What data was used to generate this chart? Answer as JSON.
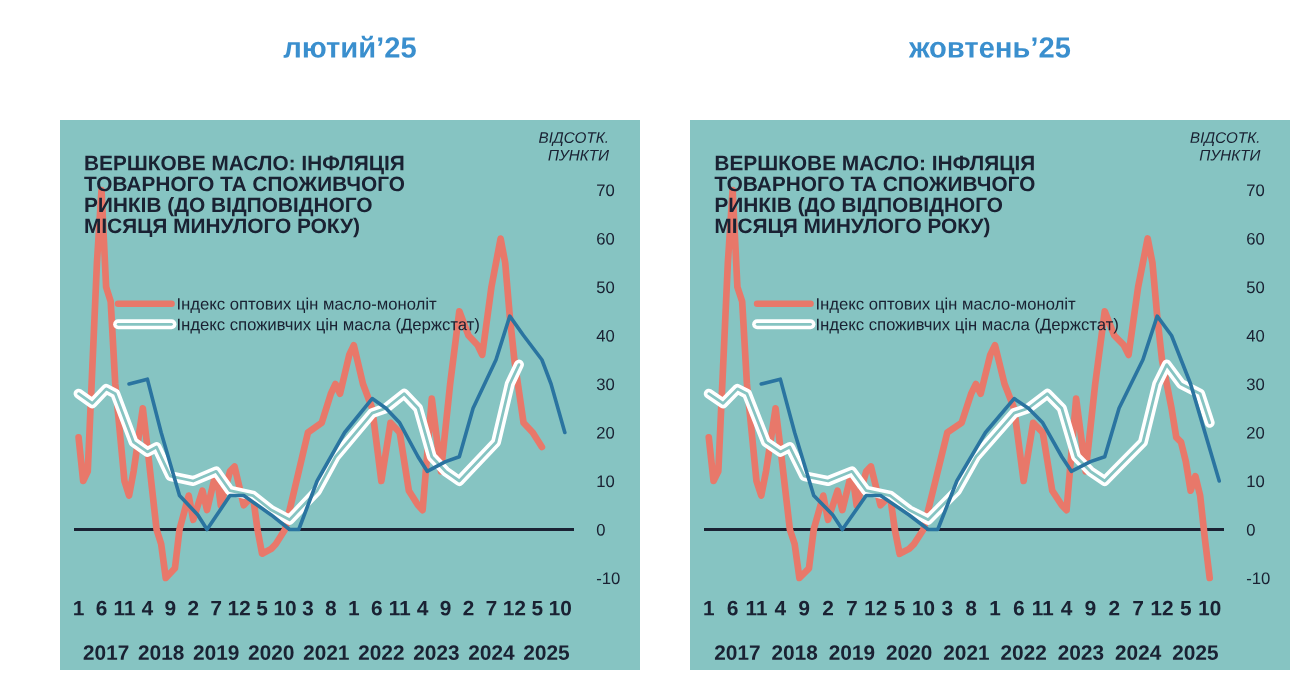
{
  "chart_data": [
    {
      "type": "line",
      "title": "лютий’25",
      "subtitle": "ВЕРШКОВЕ МАСЛО: ІНФЛЯЦІЯ\nТОВАРНОГО ТА СПОЖИВЧОГО\nРИНКІВ (ДО ВІДПОВІДНОГО\nМІСЯЦЯ МИНУЛОГО РОКУ)",
      "ylabel": "ВІДСОТК.\nПУНКТИ",
      "xlim": [
        "2016-12",
        "2026-01"
      ],
      "ylim": [
        -10,
        70
      ],
      "yticks": [
        -10,
        0,
        10,
        20,
        30,
        40,
        50,
        60,
        70
      ],
      "xticks": [
        {
          "value": "2017-01",
          "label": "1"
        },
        {
          "value": "2017-06",
          "label": "6"
        },
        {
          "value": "2017-11",
          "label": "11"
        },
        {
          "value": "2018-04",
          "label": "4"
        },
        {
          "value": "2018-09",
          "label": "9"
        },
        {
          "value": "2019-02",
          "label": "2"
        },
        {
          "value": "2019-07",
          "label": "7"
        },
        {
          "value": "2019-12",
          "label": "12"
        },
        {
          "value": "2020-05",
          "label": "5"
        },
        {
          "value": "2020-10",
          "label": "10"
        },
        {
          "value": "2021-03",
          "label": "3"
        },
        {
          "value": "2021-08",
          "label": "8"
        },
        {
          "value": "2022-01",
          "label": "1"
        },
        {
          "value": "2022-06",
          "label": "6"
        },
        {
          "value": "2022-11",
          "label": "11"
        },
        {
          "value": "2023-04",
          "label": "4"
        },
        {
          "value": "2023-09",
          "label": "9"
        },
        {
          "value": "2024-02",
          "label": "2"
        },
        {
          "value": "2024-07",
          "label": "7"
        },
        {
          "value": "2024-12",
          "label": "12"
        },
        {
          "value": "2025-05",
          "label": "5"
        },
        {
          "value": "2025-10",
          "label": "10"
        }
      ],
      "x2lim": [
        "2016-12",
        "2026-01"
      ],
      "x2ticks": [
        {
          "value": "2017-07",
          "label": "2017"
        },
        {
          "value": "2018-07",
          "label": "2018"
        },
        {
          "value": "2019-07",
          "label": "2019"
        },
        {
          "value": "2020-07",
          "label": "2020"
        },
        {
          "value": "2021-07",
          "label": "2021"
        },
        {
          "value": "2022-07",
          "label": "2022"
        },
        {
          "value": "2023-07",
          "label": "2023"
        },
        {
          "value": "2024-07",
          "label": "2024"
        },
        {
          "value": "2025-07",
          "label": "2025"
        }
      ],
      "grid": false,
      "legend": "top",
      "marker": "none",
      "line_style": "solid",
      "ref_lines": [
        {
          "axis": "y",
          "value": 0,
          "color": "#1a2233"
        }
      ],
      "series": [
        {
          "name": "Індекс оптових цін масло-моноліт",
          "color": "#e8786a",
          "x": [
            "2017-01",
            "2017-02",
            "2017-03",
            "2017-05",
            "2017-06",
            "2017-07",
            "2017-08",
            "2017-09",
            "2017-10",
            "2017-11",
            "2017-12",
            "2018-01",
            "2018-03",
            "2018-04",
            "2018-06",
            "2018-07",
            "2018-08",
            "2018-10",
            "2018-11",
            "2019-01",
            "2019-02",
            "2019-04",
            "2019-05",
            "2019-07",
            "2019-08",
            "2019-10",
            "2019-11",
            "2020-01",
            "2020-03",
            "2020-04",
            "2020-05",
            "2020-07",
            "2020-08",
            "2020-10",
            "2020-12",
            "2021-03",
            "2021-06",
            "2021-08",
            "2021-09",
            "2021-10",
            "2021-12",
            "2022-01",
            "2022-03",
            "2022-05",
            "2022-07",
            "2022-09",
            "2022-11",
            "2023-01",
            "2023-03",
            "2023-04",
            "2023-06",
            "2023-08",
            "2023-10",
            "2023-12",
            "2024-02",
            "2024-04",
            "2024-05",
            "2024-07",
            "2024-09",
            "2024-10",
            "2024-11",
            "2024-12",
            "2025-02",
            "2025-04",
            "2025-06"
          ],
          "values": [
            19,
            10,
            12,
            55,
            70,
            50,
            47,
            30,
            20,
            10,
            7,
            12,
            25,
            17,
            0,
            -3,
            -10,
            -8,
            0,
            7,
            2,
            8,
            4,
            12,
            5,
            12,
            13,
            5,
            7,
            0,
            -5,
            -4,
            -3,
            0,
            8,
            20,
            22,
            28,
            30,
            28,
            36,
            38,
            30,
            25,
            10,
            22,
            20,
            8,
            5,
            4,
            27,
            12,
            30,
            45,
            40,
            38,
            36,
            50,
            60,
            55,
            44,
            35,
            22,
            20,
            17
          ]
        },
        {
          "name": "Індекс споживчих цін масла (Держстат)",
          "color": "#ffffff",
          "x": [
            "2017-01",
            "2017-04",
            "2017-07",
            "2017-09",
            "2018-01",
            "2018-04",
            "2018-06",
            "2018-09",
            "2019-02",
            "2019-07",
            "2019-10",
            "2020-03",
            "2020-07",
            "2020-11",
            "2021-02",
            "2021-05",
            "2021-09",
            "2022-05",
            "2022-08",
            "2022-12",
            "2023-03",
            "2023-06",
            "2023-09",
            "2023-12",
            "2024-02",
            "2024-05",
            "2024-08",
            "2024-11",
            "2025-01"
          ],
          "values": [
            28,
            26,
            29,
            28,
            18,
            16,
            17,
            11,
            10,
            12,
            8,
            7,
            4,
            2,
            5,
            8,
            15,
            24,
            25,
            28,
            25,
            15,
            12,
            10,
            12,
            15,
            18,
            30,
            34
          ]
        },
        {
          "color": "#2a74a0",
          "x": [
            "2017-12",
            "2018-04",
            "2018-07",
            "2018-11",
            "2019-03",
            "2019-05",
            "2019-10",
            "2020-01",
            "2020-07",
            "2020-11",
            "2021-01",
            "2021-05",
            "2021-11",
            "2022-05",
            "2022-08",
            "2022-11",
            "2023-03",
            "2023-05",
            "2023-09",
            "2023-12",
            "2024-03",
            "2024-08",
            "2024-11",
            "2025-02",
            "2025-06",
            "2025-08",
            "2025-11"
          ],
          "values": [
            30,
            31,
            20,
            7,
            3,
            0,
            7,
            7,
            3,
            0,
            0,
            10,
            20,
            27,
            25,
            22,
            15,
            12,
            14,
            15,
            25,
            35,
            44,
            40,
            35,
            30,
            20
          ]
        }
      ]
    },
    {
      "type": "line",
      "title": "жовтень’25",
      "subtitle": "ВЕРШКОВЕ МАСЛО: ІНФЛЯЦІЯ\nТОВАРНОГО ТА СПОЖИВЧОГО\nРИНКІВ (ДО ВІДПОВІДНОГО\nМІСЯЦЯ МИНУЛОГО РОКУ)",
      "ylabel": "ВІДСОТК.\nПУНКТИ",
      "xlim": [
        "2016-12",
        "2026-01"
      ],
      "ylim": [
        -10,
        70
      ],
      "yticks": [
        -10,
        0,
        10,
        20,
        30,
        40,
        50,
        60,
        70
      ],
      "xticks": [
        {
          "value": "2017-01",
          "label": "1"
        },
        {
          "value": "2017-06",
          "label": "6"
        },
        {
          "value": "2017-11",
          "label": "11"
        },
        {
          "value": "2018-04",
          "label": "4"
        },
        {
          "value": "2018-09",
          "label": "9"
        },
        {
          "value": "2019-02",
          "label": "2"
        },
        {
          "value": "2019-07",
          "label": "7"
        },
        {
          "value": "2019-12",
          "label": "12"
        },
        {
          "value": "2020-05",
          "label": "5"
        },
        {
          "value": "2020-10",
          "label": "10"
        },
        {
          "value": "2021-03",
          "label": "3"
        },
        {
          "value": "2021-08",
          "label": "8"
        },
        {
          "value": "2022-01",
          "label": "1"
        },
        {
          "value": "2022-06",
          "label": "6"
        },
        {
          "value": "2022-11",
          "label": "11"
        },
        {
          "value": "2023-04",
          "label": "4"
        },
        {
          "value": "2023-09",
          "label": "9"
        },
        {
          "value": "2024-02",
          "label": "2"
        },
        {
          "value": "2024-07",
          "label": "7"
        },
        {
          "value": "2024-12",
          "label": "12"
        },
        {
          "value": "2025-05",
          "label": "5"
        },
        {
          "value": "2025-10",
          "label": "10"
        }
      ],
      "x2lim": [
        "2016-12",
        "2026-01"
      ],
      "x2ticks": [
        {
          "value": "2017-07",
          "label": "2017"
        },
        {
          "value": "2018-07",
          "label": "2018"
        },
        {
          "value": "2019-07",
          "label": "2019"
        },
        {
          "value": "2020-07",
          "label": "2020"
        },
        {
          "value": "2021-07",
          "label": "2021"
        },
        {
          "value": "2022-07",
          "label": "2022"
        },
        {
          "value": "2023-07",
          "label": "2023"
        },
        {
          "value": "2024-07",
          "label": "2024"
        },
        {
          "value": "2025-07",
          "label": "2025"
        }
      ],
      "grid": false,
      "legend": "top",
      "marker": "none",
      "line_style": "solid",
      "ref_lines": [
        {
          "axis": "y",
          "value": 0,
          "color": "#1a2233"
        }
      ],
      "series": [
        {
          "name": "Індекс оптових цін масло-моноліт",
          "color": "#e8786a",
          "x": [
            "2017-01",
            "2017-02",
            "2017-03",
            "2017-05",
            "2017-06",
            "2017-07",
            "2017-08",
            "2017-09",
            "2017-10",
            "2017-11",
            "2017-12",
            "2018-01",
            "2018-03",
            "2018-04",
            "2018-06",
            "2018-07",
            "2018-08",
            "2018-10",
            "2018-11",
            "2019-01",
            "2019-02",
            "2019-04",
            "2019-05",
            "2019-07",
            "2019-08",
            "2019-10",
            "2019-11",
            "2020-01",
            "2020-03",
            "2020-04",
            "2020-05",
            "2020-07",
            "2020-08",
            "2020-10",
            "2020-12",
            "2021-03",
            "2021-06",
            "2021-08",
            "2021-09",
            "2021-10",
            "2021-12",
            "2022-01",
            "2022-03",
            "2022-05",
            "2022-07",
            "2022-09",
            "2022-11",
            "2023-01",
            "2023-03",
            "2023-04",
            "2023-06",
            "2023-08",
            "2023-10",
            "2023-12",
            "2024-02",
            "2024-04",
            "2024-05",
            "2024-07",
            "2024-09",
            "2024-10",
            "2024-11",
            "2024-12",
            "2025-02",
            "2025-03",
            "2025-04",
            "2025-05",
            "2025-06",
            "2025-07",
            "2025-08",
            "2025-09",
            "2025-10"
          ],
          "values": [
            19,
            10,
            12,
            55,
            70,
            50,
            47,
            30,
            20,
            10,
            7,
            12,
            25,
            17,
            0,
            -3,
            -10,
            -8,
            0,
            7,
            2,
            8,
            4,
            12,
            5,
            12,
            13,
            5,
            7,
            0,
            -5,
            -4,
            -3,
            0,
            8,
            20,
            22,
            28,
            30,
            28,
            36,
            38,
            30,
            25,
            10,
            22,
            20,
            8,
            5,
            4,
            27,
            12,
            30,
            45,
            40,
            38,
            36,
            50,
            60,
            55,
            44,
            35,
            25,
            19,
            18,
            14,
            8,
            11,
            7,
            -2,
            -10
          ]
        },
        {
          "name": "Індекс споживчих цін масла (Держстат)",
          "color": "#ffffff",
          "x": [
            "2017-01",
            "2017-04",
            "2017-07",
            "2017-09",
            "2018-01",
            "2018-04",
            "2018-06",
            "2018-09",
            "2019-02",
            "2019-07",
            "2019-10",
            "2020-03",
            "2020-07",
            "2020-11",
            "2021-02",
            "2021-05",
            "2021-09",
            "2022-05",
            "2022-08",
            "2022-12",
            "2023-03",
            "2023-06",
            "2023-09",
            "2023-12",
            "2024-02",
            "2024-05",
            "2024-08",
            "2024-11",
            "2025-01",
            "2025-04",
            "2025-08",
            "2025-10"
          ],
          "values": [
            28,
            26,
            29,
            28,
            18,
            16,
            17,
            11,
            10,
            12,
            8,
            7,
            4,
            2,
            5,
            8,
            15,
            24,
            25,
            28,
            25,
            15,
            12,
            10,
            12,
            15,
            18,
            30,
            34,
            30,
            28,
            22
          ]
        },
        {
          "color": "#2a74a0",
          "x": [
            "2017-12",
            "2018-04",
            "2018-07",
            "2018-11",
            "2019-03",
            "2019-05",
            "2019-10",
            "2020-01",
            "2020-07",
            "2020-11",
            "2021-01",
            "2021-05",
            "2021-11",
            "2022-05",
            "2022-08",
            "2022-11",
            "2023-03",
            "2023-05",
            "2023-09",
            "2023-12",
            "2024-03",
            "2024-08",
            "2024-11",
            "2025-02",
            "2025-06",
            "2025-09",
            "2025-12"
          ],
          "values": [
            30,
            31,
            20,
            7,
            3,
            0,
            7,
            7,
            3,
            0,
            0,
            10,
            20,
            27,
            25,
            22,
            15,
            12,
            14,
            15,
            25,
            35,
            44,
            40,
            30,
            20,
            10
          ]
        }
      ]
    }
  ]
}
